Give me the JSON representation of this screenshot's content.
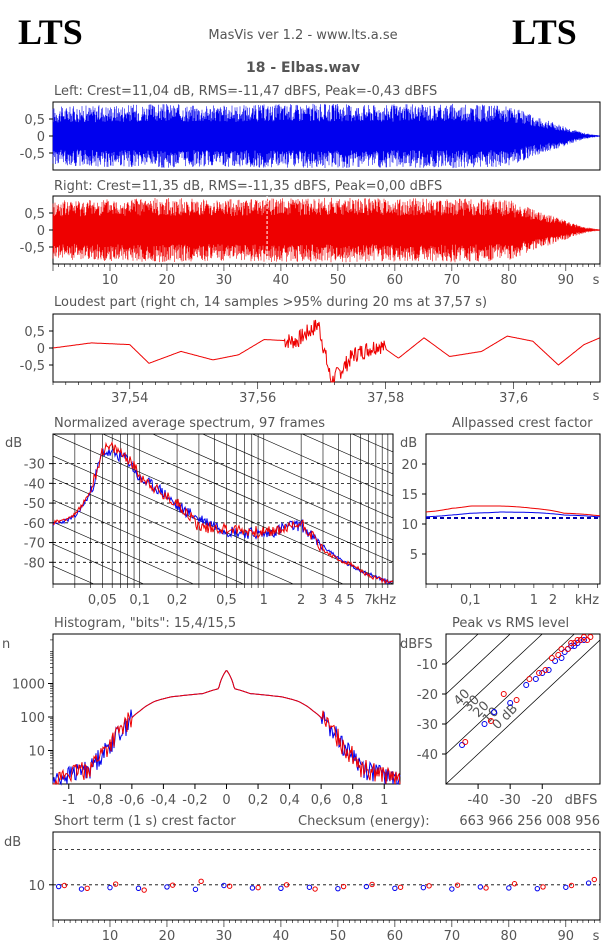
{
  "header": {
    "logo_left": "LTS",
    "logo_right": "LTS",
    "app": "MasVis ver 1.2 - www.lts.a.se",
    "track": "18 - Elbas.wav"
  },
  "colors": {
    "left": "#0000ee",
    "right": "#ee0000"
  },
  "chart_data": [
    {
      "type": "line",
      "id": "left-channel",
      "title": "Left: Crest=11,04 dB, RMS=-11,47 dBFS, Peak=-0,43 dBFS",
      "yticks": [
        "0,5",
        "0",
        "-0,5"
      ],
      "ylim": [
        -1,
        1
      ],
      "xlim": [
        0,
        96
      ],
      "envelope_x": [
        0,
        5,
        10,
        20,
        30,
        40,
        50,
        60,
        70,
        80,
        85,
        88,
        91,
        93,
        95,
        96
      ],
      "envelope_y": [
        0.85,
        0.9,
        0.92,
        0.95,
        0.9,
        0.95,
        0.95,
        0.93,
        0.95,
        0.9,
        0.55,
        0.4,
        0.22,
        0.1,
        0.04,
        0.02
      ]
    },
    {
      "type": "line",
      "id": "right-channel",
      "title": "Right: Crest=11,35 dB, RMS=-11,35 dBFS, Peak=0,00 dBFS",
      "yticks": [
        "0,5",
        "0",
        "-0,5"
      ],
      "ylim": [
        -1,
        1
      ],
      "xlim": [
        0,
        96
      ],
      "xticks": [
        "10",
        "20",
        "30",
        "40",
        "50",
        "60",
        "70",
        "80",
        "90"
      ],
      "xunit": "s",
      "marker_x": 37.57,
      "envelope_x": [
        0,
        5,
        10,
        20,
        30,
        40,
        50,
        60,
        70,
        80,
        85,
        88,
        91,
        93,
        95,
        96
      ],
      "envelope_y": [
        0.85,
        0.9,
        0.92,
        0.95,
        0.9,
        0.95,
        0.95,
        0.93,
        0.95,
        0.9,
        0.55,
        0.4,
        0.22,
        0.1,
        0.04,
        0.02
      ]
    },
    {
      "type": "line",
      "id": "loudest-part",
      "title": "Loudest part (right ch, 14 samples >95% during 20 ms at 37,57 s)",
      "yticks": [
        "0,5",
        "0",
        "-0,5"
      ],
      "ylim": [
        -1,
        1
      ],
      "xticks": [
        "37,54",
        "37,56",
        "37,58",
        "37,6"
      ],
      "xunit": "s",
      "xlim": [
        37.528,
        37.6135
      ],
      "x": [
        37.528,
        37.534,
        37.54,
        37.543,
        37.548,
        37.553,
        37.557,
        37.561,
        37.566,
        37.5695,
        37.5715,
        37.575,
        37.579,
        37.582,
        37.586,
        37.59,
        37.595,
        37.599,
        37.603,
        37.607,
        37.611,
        37.6135
      ],
      "y": [
        0.0,
        0.15,
        0.1,
        -0.45,
        -0.1,
        -0.35,
        -0.2,
        0.25,
        0.2,
        0.7,
        -1.0,
        -0.2,
        0.1,
        -0.3,
        0.3,
        -0.25,
        -0.1,
        0.35,
        0.2,
        -0.5,
        0.1,
        0.3
      ]
    },
    {
      "type": "line",
      "id": "avg-spectrum",
      "title": "Normalized average spectrum, 97 frames",
      "ylabel": "dB",
      "yticks": [
        "-30",
        "-40",
        "-50",
        "-60",
        "-70",
        "-80"
      ],
      "ylim": [
        -91,
        -15
      ],
      "xticks": [
        "0,05",
        "0,1",
        "0,2",
        "0,5",
        "1",
        "2",
        "3",
        "4",
        "5",
        "7"
      ],
      "xunit": "kHz",
      "xlim": [
        0.02,
        11
      ],
      "xscale": "log",
      "series": [
        {
          "x": [
            0.02,
            0.03,
            0.04,
            0.05,
            0.06,
            0.08,
            0.1,
            0.15,
            0.2,
            0.3,
            0.5,
            0.7,
            1,
            1.5,
            2,
            2.5,
            3,
            4,
            5,
            7,
            10
          ],
          "y": [
            -61,
            -57,
            -45,
            -24,
            -25,
            -28,
            -38,
            -44,
            -52,
            -58,
            -64,
            -65,
            -66,
            -62,
            -61,
            -68,
            -72,
            -78,
            -82,
            -86,
            -90
          ]
        },
        {
          "x": [
            0.02,
            0.03,
            0.04,
            0.05,
            0.06,
            0.08,
            0.1,
            0.15,
            0.2,
            0.3,
            0.5,
            0.7,
            1,
            1.5,
            2,
            2.5,
            3,
            4,
            5,
            7,
            10
          ],
          "y": [
            -60,
            -56,
            -44,
            -23,
            -22,
            -27,
            -36,
            -46,
            -50,
            -62,
            -63,
            -64,
            -65,
            -63,
            -60,
            -67,
            -74,
            -79,
            -81,
            -87,
            -90
          ]
        }
      ]
    },
    {
      "type": "line",
      "id": "allpassed-crest",
      "title": "Allpassed crest factor",
      "ylabel": "dB",
      "yticks": [
        "20",
        "15",
        "10",
        "5"
      ],
      "ylim": [
        0,
        25
      ],
      "xticks": [
        "0,1",
        "1",
        "2"
      ],
      "xunit": "kHz",
      "xlim": [
        0.02,
        11
      ],
      "xscale": "log",
      "reference": 11.0,
      "series": [
        {
          "x": [
            0.02,
            0.05,
            0.1,
            0.3,
            1,
            3,
            10
          ],
          "y": [
            11.2,
            11.5,
            11.8,
            12.0,
            11.9,
            11.5,
            11.2
          ]
        },
        {
          "x": [
            0.02,
            0.05,
            0.1,
            0.3,
            1,
            3,
            10
          ],
          "y": [
            12.0,
            12.6,
            13.0,
            13.0,
            12.6,
            11.8,
            11.4
          ]
        }
      ]
    },
    {
      "type": "line",
      "id": "histogram",
      "title": "Histogram, \"bits\": 15,4/15,5",
      "ylabel": "n",
      "yticks": [
        "1000",
        "100",
        "10"
      ],
      "yscale": "log",
      "ylim": [
        1,
        30000
      ],
      "xticks": [
        "-1",
        "-0,8",
        "-0,6",
        "-0,4",
        "-0,2",
        "0",
        "0,2",
        "0,4",
        "0,6",
        "0,8",
        "1"
      ],
      "xlim": [
        -1.1,
        1.1
      ],
      "x": [
        -1.1,
        -0.95,
        -0.85,
        -0.75,
        -0.65,
        -0.55,
        -0.45,
        -0.35,
        -0.25,
        -0.15,
        -0.05,
        0,
        0.05,
        0.15,
        0.25,
        0.35,
        0.45,
        0.55,
        0.65,
        0.75,
        0.85,
        0.95,
        1.1
      ],
      "y": [
        1,
        2,
        3,
        10,
        40,
        150,
        300,
        400,
        450,
        500,
        700,
        2500,
        700,
        500,
        450,
        400,
        300,
        150,
        40,
        10,
        3,
        2,
        1
      ]
    },
    {
      "type": "scatter",
      "id": "peak-vs-rms",
      "title": "Peak vs RMS level",
      "ylabel": "dBFS",
      "yticks": [
        "-10",
        "-20",
        "-30",
        "-40"
      ],
      "ylim": [
        -50,
        0
      ],
      "xticks": [
        "-40",
        "-30",
        "-20"
      ],
      "xunit": "dBFS",
      "xlim": [
        -50,
        -2
      ],
      "diagonal_labels": [
        "40",
        "30",
        "20",
        "10",
        "0 dB"
      ],
      "series": [
        {
          "x": [
            -45,
            -38,
            -35,
            -30,
            -25,
            -22,
            -20,
            -18,
            -16,
            -14,
            -13,
            -12,
            -11,
            -10,
            -9,
            -8,
            -7
          ],
          "y": [
            -37,
            -30,
            -26,
            -23,
            -17,
            -15,
            -13,
            -12,
            -9,
            -8,
            -6,
            -5,
            -4,
            -4,
            -3,
            -2,
            -2
          ]
        },
        {
          "x": [
            -44,
            -36,
            -32,
            -28,
            -24,
            -21,
            -19,
            -17,
            -15,
            -14,
            -12,
            -11,
            -10,
            -9,
            -8,
            -7,
            -6,
            -5
          ],
          "y": [
            -36,
            -29,
            -20,
            -22,
            -15,
            -13,
            -12,
            -8,
            -7,
            -5,
            -5,
            -3,
            -3,
            -2,
            -2,
            -1,
            -2,
            -1
          ]
        }
      ]
    },
    {
      "type": "scatter",
      "id": "short-term-crest",
      "title": "Short term (1 s) crest factor",
      "ylabel": "dB",
      "yticks": [
        "10"
      ],
      "ylim": [
        0,
        25
      ],
      "reference": 20,
      "xticks": [
        "10",
        "20",
        "30",
        "40",
        "50",
        "60",
        "70",
        "80",
        "90"
      ],
      "xunit": "s",
      "xlim": [
        0,
        96
      ],
      "checksum_label": "Checksum (energy):",
      "checksum": "663 966 256 008 956",
      "series": [
        {
          "x": [
            1,
            5,
            10,
            15,
            20,
            25,
            30,
            35,
            40,
            45,
            50,
            55,
            60,
            65,
            70,
            75,
            80,
            85,
            90,
            94
          ],
          "y": [
            9.5,
            8.8,
            9.2,
            9.0,
            9.4,
            8.7,
            9.8,
            9.1,
            9.0,
            9.3,
            8.9,
            9.5,
            9.0,
            9.2,
            8.8,
            9.4,
            9.1,
            8.9,
            9.3,
            10.5
          ]
        },
        {
          "x": [
            2,
            6,
            11,
            16,
            21,
            26,
            31,
            36,
            41,
            46,
            51,
            56,
            61,
            66,
            71,
            76,
            81,
            86,
            91,
            95
          ],
          "y": [
            9.8,
            9.0,
            10.2,
            8.5,
            9.9,
            11.0,
            9.6,
            9.2,
            10.0,
            8.8,
            9.5,
            10.1,
            9.3,
            9.7,
            9.9,
            9.1,
            10.3,
            9.4,
            9.8,
            11.5
          ]
        }
      ]
    }
  ]
}
